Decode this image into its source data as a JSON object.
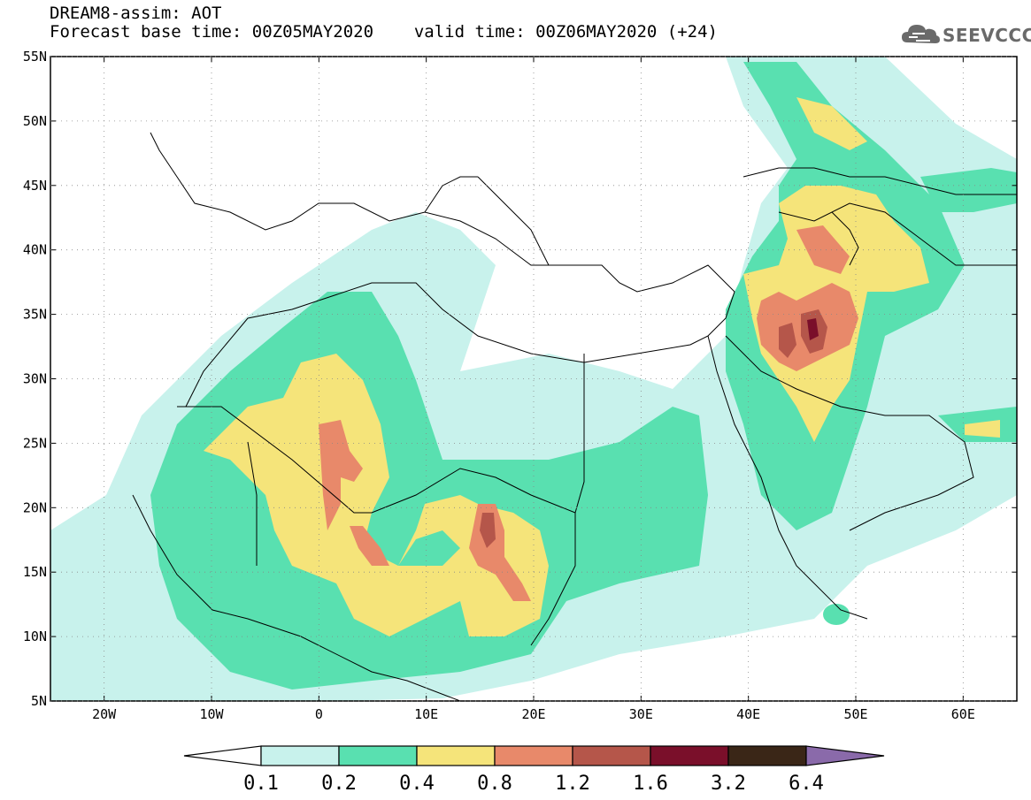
{
  "header": {
    "title": "DREAM8-assim: AOT",
    "base_time_label": "Forecast base time: 00Z05MAY2020",
    "valid_time_label": "valid time: 00Z06MAY2020 (+24)"
  },
  "logo": {
    "text": "SEEVCCC"
  },
  "map": {
    "extent": {
      "lon": [
        -25,
        65
      ],
      "lat": [
        5,
        55
      ]
    },
    "lat_ticks": [
      "5N",
      "10N",
      "15N",
      "20N",
      "25N",
      "30N",
      "35N",
      "40N",
      "45N",
      "50N",
      "55N"
    ],
    "lon_ticks": [
      "20W",
      "10W",
      "0",
      "10E",
      "20E",
      "30E",
      "40E",
      "50E",
      "60E"
    ],
    "colorbar": {
      "labels": [
        "0.1",
        "0.2",
        "0.4",
        "0.8",
        "1.2",
        "1.6",
        "3.2",
        "6.4"
      ],
      "colors": [
        "#ffffff",
        "#c8f2ec",
        "#59e0b0",
        "#f5e47a",
        "#e8896a",
        "#b5564a",
        "#7a0f2a",
        "#3a2617",
        "#8a6aaa"
      ]
    }
  }
}
